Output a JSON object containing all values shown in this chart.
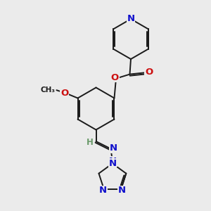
{
  "bg_color": "#ebebeb",
  "bond_color": "#1a1a1a",
  "bond_width": 1.4,
  "atom_colors": {
    "N": "#1010cc",
    "O": "#cc1010",
    "H": "#6a9a6a"
  },
  "font_size": 9.5,
  "dbo": 0.065
}
